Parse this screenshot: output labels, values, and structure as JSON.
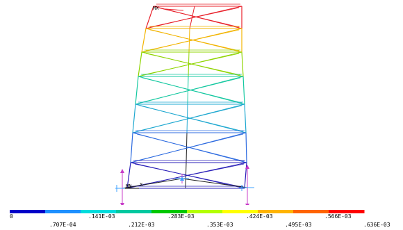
{
  "viewport": {
    "marker_max_label": "MX",
    "marker_min_label": "MN",
    "axis_label": "X"
  },
  "contour_legend": {
    "upper_labels": [
      "0",
      ".141E-03",
      ".283E-03",
      ".424E-03",
      ".566E-03"
    ],
    "lower_labels": [
      ".707E-04",
      ".212E-03",
      ".353E-03",
      ".495E-03",
      ".636E-03"
    ],
    "band_colors": [
      "#0000c8",
      "#1e90ff",
      "#00dcdc",
      "#00c8a0",
      "#00c800",
      "#b4ff00",
      "#ffff00",
      "#ffb400",
      "#ff6400",
      "#ff0000"
    ]
  },
  "frame_colors": {
    "bottom": "#2a1fb8",
    "lower_mid": "#2d6be0",
    "mid": "#1ea8d0",
    "mid_upper": "#14c8a0",
    "upper": "#8fd400",
    "near_top": "#f2b400",
    "top": "#e8202a"
  }
}
